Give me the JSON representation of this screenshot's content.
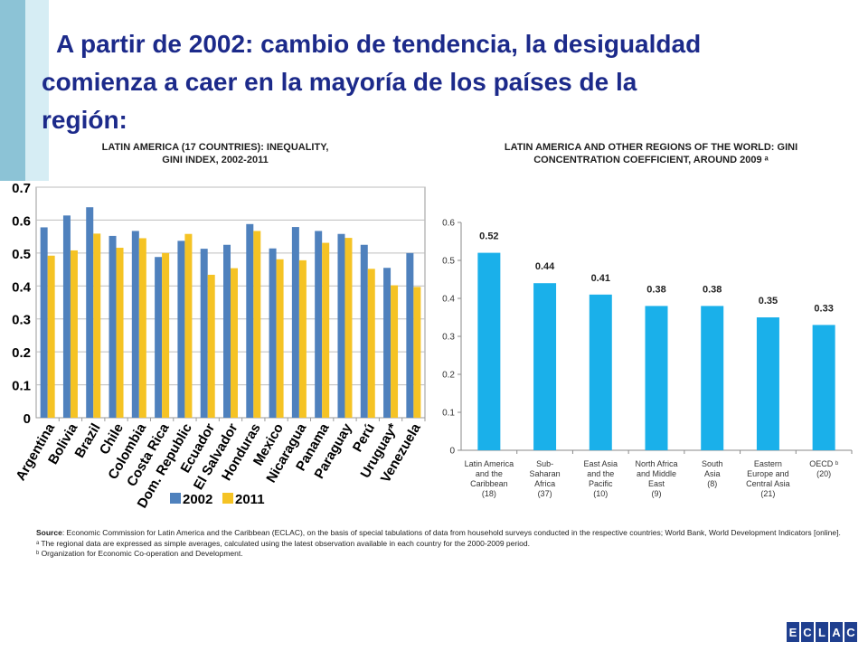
{
  "title": {
    "line1": "A partir de 2002: cambio de tendencia, la desigualdad",
    "line2": "comienza a caer en la mayoría de los países de la",
    "line3": "región:"
  },
  "footer": {
    "source_label": "Source",
    "source_text": ": Economic Commission for Latin America and the Caribbean (ECLAC), on the basis of special tabulations of data from household surveys conducted in the respective countries; World Bank, World Development Indicators [online].",
    "note_a": "ᵃ The regional data are expressed as simple averages, calculated using the latest observation available in each country for the 2000-2009 period.",
    "note_b": "ᵇ Organization for Economic Co-operation and Development.",
    "logo_letters": [
      "E",
      "C",
      "L",
      "A",
      "C"
    ]
  },
  "chart_data": [
    {
      "type": "bar",
      "title_line1": "LATIN AMERICA (17 COUNTRIES): INEQUALITY,",
      "title_line2": "GINI INDEX, 2002-2011",
      "categories": [
        "Argentina",
        "Bolivia",
        "Brazil",
        "Chile",
        "Colombia",
        "Costa Rica",
        "Dom. Republic",
        "Ecuador",
        "El Salvador",
        "Honduras",
        "Mexico",
        "Nicaragua",
        "Panama",
        "Paraguay",
        "Perú",
        "Uruguay*",
        "Venezuela"
      ],
      "series": [
        {
          "name": "2002",
          "color": "#4f81bd",
          "values": [
            0.578,
            0.614,
            0.639,
            0.552,
            0.567,
            0.488,
            0.537,
            0.513,
            0.525,
            0.588,
            0.514,
            0.579,
            0.567,
            0.558,
            0.525,
            0.455,
            0.5
          ]
        },
        {
          "name": "2011",
          "color": "#f5c324",
          "values": [
            0.492,
            0.508,
            0.559,
            0.516,
            0.545,
            0.5,
            0.558,
            0.434,
            0.454,
            0.567,
            0.481,
            0.478,
            0.531,
            0.546,
            0.452,
            0.402,
            0.397
          ]
        }
      ],
      "ylim": [
        0,
        0.7
      ],
      "yticks": [
        "0",
        "0.1",
        "0.2",
        "0.3",
        "0.4",
        "0.5",
        "0.6",
        "0.7"
      ],
      "legend_position": "bottom"
    },
    {
      "type": "bar",
      "title_line1": "LATIN AMERICA AND OTHER REGIONS OF THE WORLD: GINI",
      "title_line2": "CONCENTRATION COEFFICIENT, AROUND 2009 ᵃ",
      "categories": [
        [
          "Latin America",
          "and the",
          "Caribbean",
          "(18)"
        ],
        [
          "Sub-",
          "Saharan",
          "Africa",
          "(37)"
        ],
        [
          "East Asia",
          "and the",
          "Pacific",
          "(10)"
        ],
        [
          "North Africa",
          "and Middle",
          "East",
          "(9)"
        ],
        [
          "South",
          "Asia",
          "(8)"
        ],
        [
          "Eastern",
          "Europe and",
          "Central Asia",
          "(21)"
        ],
        [
          "OECD ᵇ",
          "(20)"
        ]
      ],
      "values": [
        0.52,
        0.44,
        0.41,
        0.38,
        0.38,
        0.35,
        0.33
      ],
      "value_labels": [
        "0.52",
        "0.44",
        "0.41",
        "0.38",
        "0.38",
        "0.35",
        "0.33"
      ],
      "color": "#1ab0ea",
      "ylim": [
        0,
        0.6
      ],
      "yticks": [
        "0",
        "0.1",
        "0.2",
        "0.3",
        "0.4",
        "0.5",
        "0.6"
      ]
    }
  ]
}
